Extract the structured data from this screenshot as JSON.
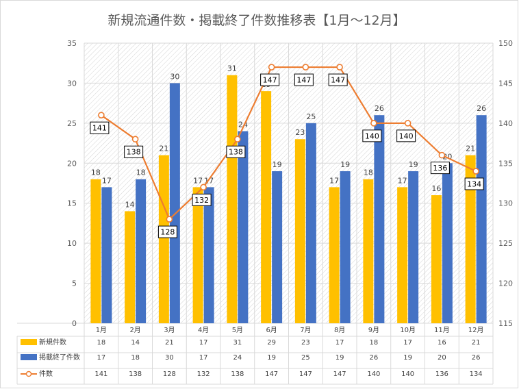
{
  "chart_data": {
    "type": "bar",
    "title": "新規流通件数・掲載終了件数推移表【1月～12月】",
    "categories": [
      "1月",
      "2月",
      "3月",
      "4月",
      "5月",
      "6月",
      "7月",
      "8月",
      "9月",
      "10月",
      "11月",
      "12月"
    ],
    "y_left": {
      "min": 0,
      "max": 35,
      "step": 5,
      "ticks": [
        "0",
        "5",
        "10",
        "15",
        "20",
        "25",
        "30",
        "35"
      ]
    },
    "y_right": {
      "min": 115,
      "max": 150,
      "step": 5,
      "ticks": [
        "115",
        "120",
        "125",
        "130",
        "135",
        "140",
        "145",
        "150"
      ]
    },
    "series": [
      {
        "name": "新規件数",
        "type": "bar",
        "axis": "left",
        "color": "#FFC000",
        "values": [
          18,
          14,
          21,
          17,
          31,
          29,
          23,
          17,
          18,
          17,
          16,
          21
        ]
      },
      {
        "name": "掲載終了件数",
        "type": "bar",
        "axis": "left",
        "color": "#4472C4",
        "values": [
          17,
          18,
          30,
          17,
          24,
          19,
          25,
          19,
          26,
          19,
          20,
          26
        ]
      },
      {
        "name": "件数",
        "type": "line",
        "axis": "right",
        "color": "#ED7D31",
        "values": [
          141,
          138,
          128,
          132,
          138,
          147,
          147,
          147,
          140,
          140,
          136,
          134
        ]
      }
    ],
    "grid": true,
    "legend": "data-table"
  }
}
